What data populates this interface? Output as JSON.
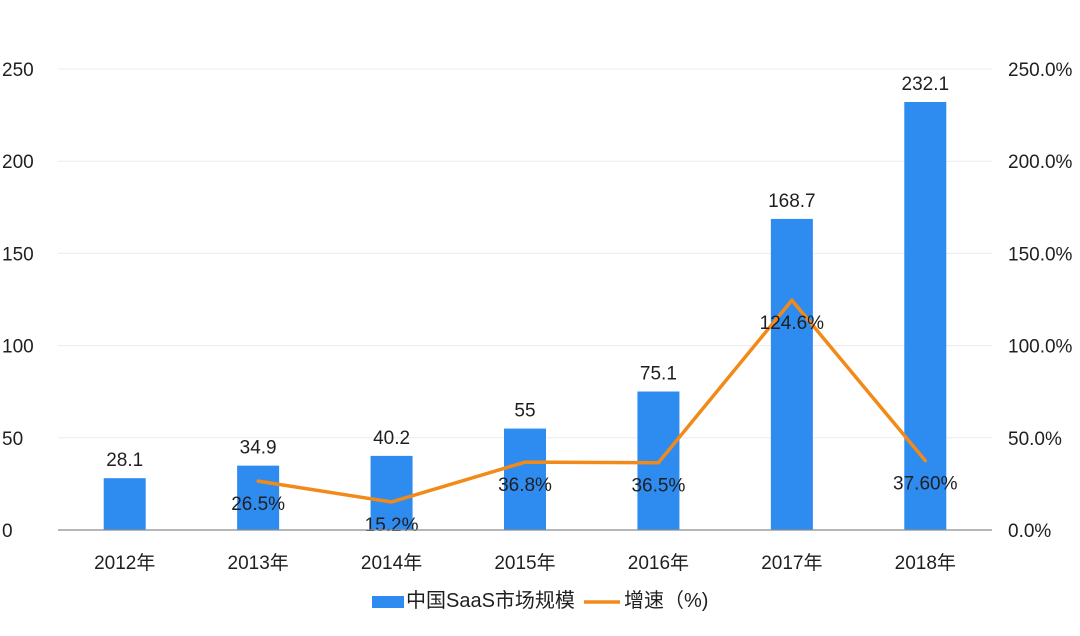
{
  "chart_data": {
    "type": "bar",
    "categories": [
      "2012年",
      "2013年",
      "2014年",
      "2015年",
      "2016年",
      "2017年",
      "2018年"
    ],
    "series": [
      {
        "name": "中国SaaS市场规模",
        "type": "bar",
        "axis": "left",
        "values": [
          28.1,
          34.9,
          40.2,
          55,
          75.1,
          168.7,
          232.1
        ],
        "labels": [
          "28.1",
          "34.9",
          "40.2",
          "55",
          "75.1",
          "168.7",
          "232.1"
        ],
        "color": "#2E8BF0"
      },
      {
        "name": "增速（%)",
        "type": "line",
        "axis": "right",
        "values": [
          null,
          26.5,
          15.2,
          36.8,
          36.5,
          124.6,
          37.6
        ],
        "labels": [
          null,
          "26.5%",
          "15.2%",
          "36.8%",
          "36.5%",
          "124.6%",
          "37.60%"
        ],
        "color": "#F28A1A"
      }
    ],
    "y_left": {
      "min": 0,
      "max": 250,
      "ticks": [
        "0",
        "50",
        "100",
        "150",
        "200",
        "250"
      ]
    },
    "y_right": {
      "min": 0,
      "max": 250,
      "ticks": [
        "0.0%",
        "50.0%",
        "100.0%",
        "150.0%",
        "200.0%",
        "250.0%"
      ]
    },
    "grid": true,
    "legend_position": "bottom"
  }
}
